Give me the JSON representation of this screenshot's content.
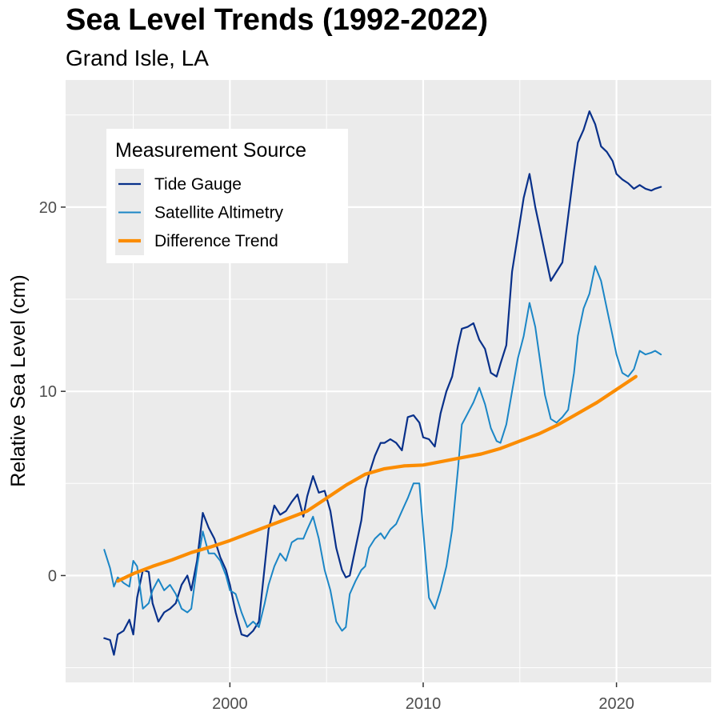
{
  "chart_data": {
    "type": "line",
    "title": "Sea Level Trends (1992-2022)",
    "subtitle": "Grand Isle, LA",
    "ylabel": "Relative Sea Level (cm)",
    "xlabel": "",
    "xlim": [
      1991.5,
      2024.9
    ],
    "ylim": [
      -5.8,
      26.9
    ],
    "x_ticks": [
      2000,
      2010,
      2020
    ],
    "x_tick_labels": [
      "2000",
      "2010",
      "2020"
    ],
    "y_ticks": [
      0,
      10,
      20
    ],
    "y_tick_labels": [
      "0",
      "10",
      "20"
    ],
    "grid": true,
    "legend": {
      "title": "Measurement Source",
      "placement": "top-left inside"
    },
    "series": [
      {
        "name": "Tide Gauge",
        "color": "#08308a",
        "x": [
          1993.5,
          1993.8,
          1994.0,
          1994.2,
          1994.5,
          1994.8,
          1995.0,
          1995.2,
          1995.5,
          1995.8,
          1996.0,
          1996.3,
          1996.6,
          1996.9,
          1997.2,
          1997.5,
          1997.8,
          1998.0,
          1998.3,
          1998.6,
          1998.9,
          1999.2,
          1999.5,
          1999.8,
          2000.0,
          2000.3,
          2000.6,
          2000.9,
          2001.2,
          2001.5,
          2001.8,
          2002.0,
          2002.3,
          2002.6,
          2002.9,
          2003.2,
          2003.5,
          2003.8,
          2004.0,
          2004.3,
          2004.6,
          2004.9,
          2005.2,
          2005.5,
          2005.8,
          2006.0,
          2006.2,
          2006.5,
          2006.8,
          2007.0,
          2007.2,
          2007.5,
          2007.8,
          2008.0,
          2008.3,
          2008.6,
          2008.9,
          2009.2,
          2009.5,
          2009.8,
          2010.0,
          2010.3,
          2010.6,
          2010.9,
          2011.2,
          2011.5,
          2011.8,
          2012.0,
          2012.3,
          2012.6,
          2012.9,
          2013.2,
          2013.5,
          2013.8,
          2014.0,
          2014.3,
          2014.6,
          2014.9,
          2015.2,
          2015.5,
          2015.8,
          2016.0,
          2016.3,
          2016.6,
          2016.9,
          2017.2,
          2017.5,
          2017.8,
          2018.0,
          2018.3,
          2018.6,
          2018.9,
          2019.2,
          2019.5,
          2019.8,
          2020.0,
          2020.3,
          2020.6,
          2020.9,
          2021.2,
          2021.5,
          2021.8,
          2022.0,
          2022.3
        ],
        "y": [
          -3.4,
          -3.5,
          -4.3,
          -3.2,
          -3.0,
          -2.4,
          -3.2,
          -1.2,
          0.3,
          0.2,
          -1.5,
          -2.5,
          -2.0,
          -1.8,
          -1.5,
          -0.5,
          0.0,
          -0.8,
          0.8,
          3.4,
          2.6,
          2.0,
          1.0,
          0.3,
          -0.5,
          -2.0,
          -3.2,
          -3.3,
          -3.0,
          -2.5,
          0.5,
          2.5,
          3.8,
          3.3,
          3.5,
          4.0,
          4.4,
          3.2,
          4.3,
          5.4,
          4.5,
          4.6,
          3.5,
          1.5,
          0.3,
          -0.1,
          0.0,
          1.5,
          3.0,
          4.7,
          5.5,
          6.5,
          7.2,
          7.2,
          7.4,
          7.2,
          6.8,
          8.6,
          8.7,
          8.3,
          7.5,
          7.4,
          7.0,
          8.8,
          10.0,
          10.8,
          12.5,
          13.4,
          13.5,
          13.7,
          12.8,
          12.3,
          11.0,
          10.8,
          11.5,
          12.5,
          16.5,
          18.5,
          20.5,
          21.8,
          20.0,
          19.0,
          17.5,
          16.0,
          16.5,
          17.0,
          19.5,
          22.0,
          23.5,
          24.2,
          25.2,
          24.5,
          23.3,
          23.0,
          22.5,
          21.8,
          21.5,
          21.3,
          21.0,
          21.2,
          21.0,
          20.9,
          21.0,
          21.1
        ],
        "stroke_width": 2.2
      },
      {
        "name": "Satellite Altimetry",
        "color": "#1b86c6",
        "x": [
          1993.5,
          1993.8,
          1994.0,
          1994.2,
          1994.5,
          1994.8,
          1995.0,
          1995.2,
          1995.5,
          1995.8,
          1996.0,
          1996.3,
          1996.6,
          1996.9,
          1997.2,
          1997.5,
          1997.8,
          1998.0,
          1998.3,
          1998.6,
          1998.9,
          1999.2,
          1999.5,
          1999.8,
          2000.0,
          2000.3,
          2000.6,
          2000.9,
          2001.2,
          2001.5,
          2001.8,
          2002.0,
          2002.3,
          2002.6,
          2002.9,
          2003.2,
          2003.5,
          2003.8,
          2004.0,
          2004.3,
          2004.6,
          2004.9,
          2005.2,
          2005.5,
          2005.8,
          2006.0,
          2006.2,
          2006.5,
          2006.8,
          2007.0,
          2007.2,
          2007.5,
          2007.8,
          2008.0,
          2008.3,
          2008.6,
          2008.9,
          2009.2,
          2009.5,
          2009.8,
          2010.0,
          2010.3,
          2010.6,
          2010.9,
          2011.2,
          2011.5,
          2011.8,
          2012.0,
          2012.3,
          2012.6,
          2012.9,
          2013.2,
          2013.5,
          2013.8,
          2014.0,
          2014.3,
          2014.6,
          2014.9,
          2015.2,
          2015.5,
          2015.8,
          2016.0,
          2016.3,
          2016.6,
          2016.9,
          2017.2,
          2017.5,
          2017.8,
          2018.0,
          2018.3,
          2018.6,
          2018.9,
          2019.2,
          2019.5,
          2019.8,
          2020.0,
          2020.3,
          2020.6,
          2020.9,
          2021.2,
          2021.5,
          2021.8,
          2022.0,
          2022.3
        ],
        "y": [
          1.4,
          0.4,
          -0.6,
          -0.1,
          -0.4,
          -0.6,
          0.8,
          0.5,
          -1.8,
          -1.5,
          -0.8,
          -0.2,
          -0.8,
          -0.5,
          -1.0,
          -1.8,
          -2.0,
          -1.8,
          0.5,
          2.4,
          1.2,
          1.2,
          0.8,
          0.0,
          -0.8,
          -1.0,
          -2.0,
          -2.8,
          -2.5,
          -2.8,
          -1.5,
          -0.5,
          0.5,
          1.2,
          0.8,
          1.8,
          2.0,
          2.0,
          2.5,
          3.2,
          2.0,
          0.3,
          -0.8,
          -2.5,
          -3.0,
          -2.8,
          -1.0,
          -0.3,
          0.3,
          0.5,
          1.5,
          2.0,
          2.3,
          2.0,
          2.5,
          2.8,
          3.5,
          4.2,
          5.0,
          5.0,
          2.5,
          -1.2,
          -1.8,
          -0.8,
          0.5,
          2.5,
          5.8,
          8.2,
          8.8,
          9.4,
          10.2,
          9.3,
          8.0,
          7.3,
          7.2,
          8.2,
          10.0,
          11.8,
          13.0,
          14.8,
          13.5,
          12.0,
          9.8,
          8.5,
          8.3,
          8.6,
          9.0,
          11.0,
          13.0,
          14.5,
          15.3,
          16.8,
          16.0,
          14.5,
          13.0,
          12.0,
          11.0,
          10.8,
          11.2,
          12.2,
          12.0,
          12.1,
          12.2,
          12.0
        ],
        "stroke_width": 2.0
      },
      {
        "name": "Difference Trend",
        "color": "#fb8c00",
        "x": [
          1994.2,
          1995.0,
          1996.0,
          1997.0,
          1998.0,
          1999.0,
          2000.0,
          2001.0,
          2002.0,
          2003.0,
          2004.0,
          2005.0,
          2006.0,
          2007.0,
          2008.0,
          2009.0,
          2010.0,
          2011.0,
          2012.0,
          2013.0,
          2014.0,
          2015.0,
          2016.0,
          2017.0,
          2018.0,
          2019.0,
          2020.0,
          2021.0
        ],
        "y": [
          -0.3,
          0.1,
          0.5,
          0.85,
          1.25,
          1.55,
          1.9,
          2.3,
          2.7,
          3.1,
          3.5,
          4.2,
          4.9,
          5.5,
          5.8,
          5.95,
          6.0,
          6.2,
          6.4,
          6.6,
          6.9,
          7.3,
          7.7,
          8.2,
          8.8,
          9.4,
          10.1,
          10.8
        ],
        "stroke_width": 4.2
      }
    ]
  }
}
